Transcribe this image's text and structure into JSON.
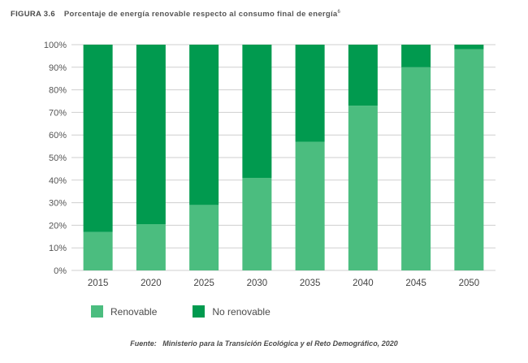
{
  "header": {
    "figure_label": "FIGURA 3.6",
    "title": "Porcentaje de energía renovable respecto al consumo final de energía",
    "footnote_mark": "6"
  },
  "source": {
    "label": "Fuente:",
    "text": "Ministerio para la Transición Ecológica y el Reto Demográfico, 2020"
  },
  "colors": {
    "renovable": "#4bbd7f",
    "no_renovable": "#019a4f",
    "grid": "#cfcfcf"
  },
  "chart_data": {
    "type": "bar",
    "stacked": true,
    "title": "Porcentaje de energía renovable respecto al consumo final de energía",
    "categories": [
      "2015",
      "2020",
      "2025",
      "2030",
      "2035",
      "2040",
      "2045",
      "2050"
    ],
    "series": [
      {
        "name": "Renovable",
        "values": [
          17,
          20.5,
          29,
          41,
          57,
          73,
          90,
          98
        ]
      },
      {
        "name": "No renovable",
        "values": [
          83,
          79.5,
          71,
          59,
          43,
          27,
          10,
          2
        ]
      }
    ],
    "yticks": [
      "0%",
      "10%",
      "20%",
      "30%",
      "40%",
      "50%",
      "60%",
      "70%",
      "80%",
      "90%",
      "100%"
    ],
    "ylim": [
      0,
      100
    ],
    "xlabel": "",
    "ylabel": "",
    "grid": true,
    "legend_position": "bottom-left"
  }
}
